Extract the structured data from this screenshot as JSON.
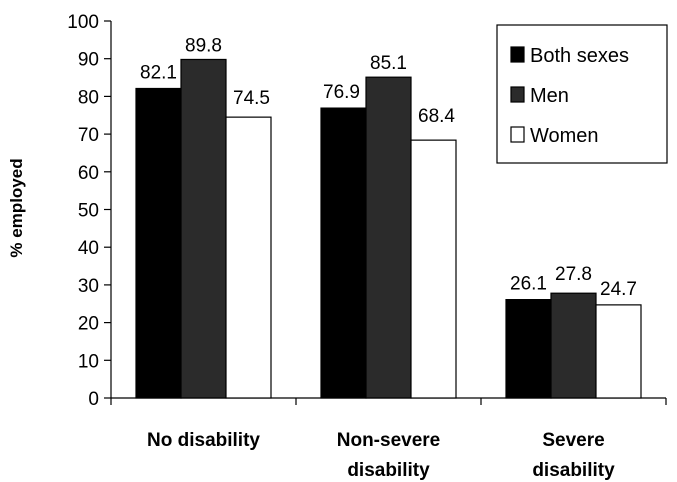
{
  "chart_data": {
    "type": "bar",
    "categories": [
      [
        "No disability"
      ],
      [
        "Non-severe",
        "disability"
      ],
      [
        "Severe",
        "disability"
      ]
    ],
    "series": [
      {
        "name": "Both sexes",
        "values": [
          82.1,
          76.9,
          26.1
        ],
        "color": "#000000"
      },
      {
        "name": "Men",
        "values": [
          89.8,
          85.1,
          27.8
        ],
        "color": "#2b2b2b"
      },
      {
        "name": "Women",
        "values": [
          74.5,
          68.4,
          24.7
        ],
        "color": "#ffffff"
      }
    ],
    "value_labels": [
      [
        "82.1",
        "76.9",
        "26.1"
      ],
      [
        "89.8",
        "85.1",
        "27.8"
      ],
      [
        "74.5",
        "68.4",
        "24.7"
      ]
    ],
    "ylabel": "% employed",
    "xlabel": "",
    "ylim": [
      0,
      100
    ],
    "yticks": [
      "0",
      "10",
      "20",
      "30",
      "40",
      "50",
      "60",
      "70",
      "80",
      "90",
      "100"
    ],
    "grid": false,
    "legend_position": "top-right"
  }
}
